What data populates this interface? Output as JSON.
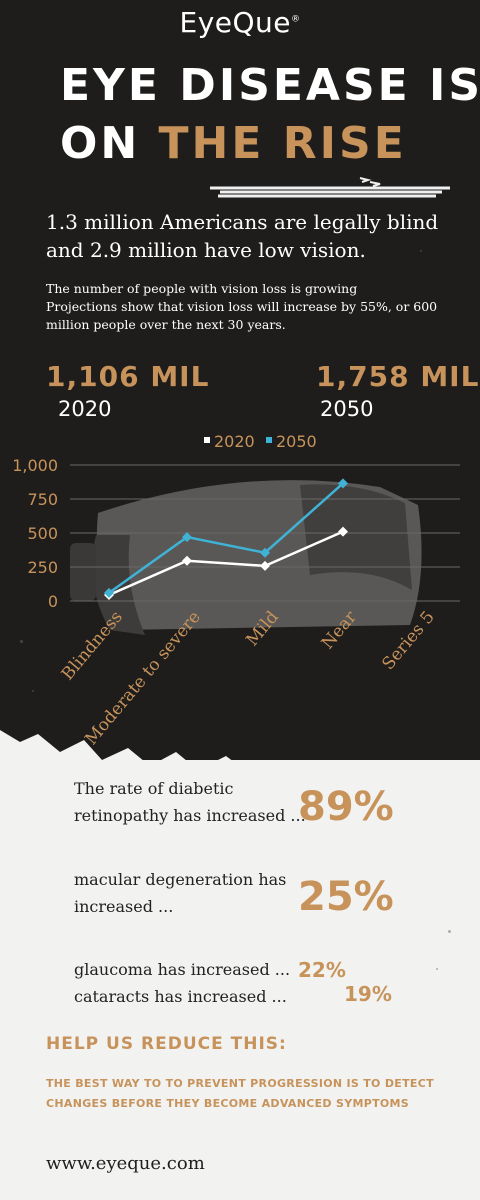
{
  "brand": {
    "name": "EyeQue",
    "mark": "®"
  },
  "headline": {
    "line1": "EYE DISEASE IS",
    "line2_prefix": "ON ",
    "line2_accent": "THE RISE"
  },
  "lead": "1.3 million Americans are legally blind and 2.9 million have low vision.",
  "sub_lines": [
    "The number of people with vision loss is growing",
    "Projections show that vision loss will increase by 55%, or 600",
    "million people over the next 30 years."
  ],
  "stats": [
    {
      "value": "1,106 MIL",
      "year": "2020"
    },
    {
      "value": "1,758 MIL",
      "year": "2050"
    }
  ],
  "chart_data": {
    "type": "line",
    "categories": [
      "Blindness",
      "Moderate to severe",
      "Mild",
      "Near",
      "Series 5"
    ],
    "series": [
      {
        "name": "2020",
        "color": "#ffffff",
        "values": [
          44,
          296,
          258,
          510,
          null
        ]
      },
      {
        "name": "2050",
        "color": "#3fb2d6",
        "values": [
          60,
          470,
          355,
          865,
          null
        ]
      }
    ],
    "yticks": [
      "0",
      "250",
      "500",
      "750",
      "1,000"
    ],
    "ylim": [
      0,
      1000
    ],
    "grid": true,
    "legend": "top-center",
    "colors": {
      "axis_text": "#c7935b",
      "grid": "#6b6966"
    }
  },
  "rates": [
    {
      "lines": [
        "The rate of diabetic",
        "retinopathy has increased ..."
      ],
      "value": "89%"
    },
    {
      "lines": [
        "macular degeneration has",
        "increased ..."
      ],
      "value": "25%"
    },
    {
      "lines": [
        "glaucoma has increased ...",
        "cataracts has increased ..."
      ],
      "values": [
        "22%",
        "19%"
      ]
    }
  ],
  "help": {
    "title": "HELP US REDUCE THIS:",
    "body": [
      "THE BEST WAY TO TO PREVENT PROGRESSION IS TO DETECT",
      "CHANGES BEFORE THEY BECOME ADVANCED SYMPTOMS"
    ]
  },
  "website": "www.eyeque.com",
  "colors": {
    "accent": "#c7935b",
    "dark_bg": "#1e1d1c",
    "light_bg": "#f2f2f0",
    "series_2050": "#3fb2d6"
  }
}
